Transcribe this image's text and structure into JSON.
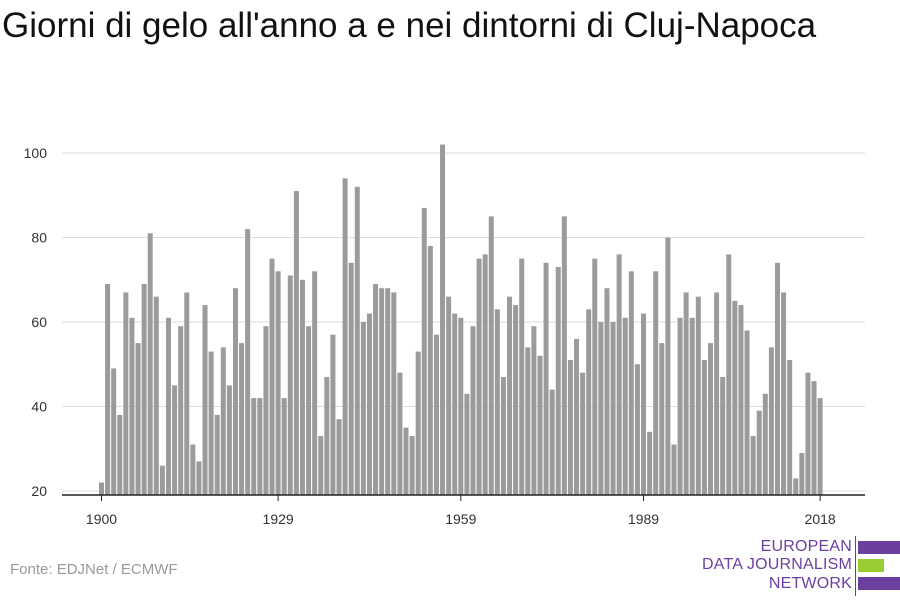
{
  "title": "Giorni di gelo all'anno a e nei dintorni di Cluj-Napoca",
  "source": "Fonte: EDJNet / ECMWF",
  "logo": {
    "line1": "EUROPEAN",
    "line2": "DATA JOURNALISM",
    "line3": "NETWORK"
  },
  "colors": {
    "bar": "#9b9b9b",
    "grid": "#dddddd",
    "axis": "#222222",
    "logo_purple": "#6b3fa0",
    "logo_green": "#9acd32"
  },
  "chart_data": {
    "type": "bar",
    "title": "Giorni di gelo all'anno a e nei dintorni di Cluj-Napoca",
    "xlabel": "",
    "ylabel": "",
    "ylim": [
      20,
      105
    ],
    "yticks": [
      20,
      40,
      60,
      80,
      100
    ],
    "xticks": [
      1900,
      1929,
      1959,
      1989,
      2018
    ],
    "grid": true,
    "x": [
      1900,
      1901,
      1902,
      1903,
      1904,
      1905,
      1906,
      1907,
      1908,
      1909,
      1910,
      1911,
      1912,
      1913,
      1914,
      1915,
      1916,
      1917,
      1918,
      1919,
      1920,
      1921,
      1922,
      1923,
      1924,
      1925,
      1926,
      1927,
      1928,
      1929,
      1930,
      1931,
      1932,
      1933,
      1934,
      1935,
      1936,
      1937,
      1938,
      1939,
      1940,
      1941,
      1942,
      1943,
      1944,
      1945,
      1946,
      1947,
      1948,
      1949,
      1950,
      1951,
      1952,
      1953,
      1954,
      1955,
      1956,
      1957,
      1958,
      1959,
      1960,
      1961,
      1962,
      1963,
      1964,
      1965,
      1966,
      1967,
      1968,
      1969,
      1970,
      1971,
      1972,
      1973,
      1974,
      1975,
      1976,
      1977,
      1978,
      1979,
      1980,
      1981,
      1982,
      1983,
      1984,
      1985,
      1986,
      1987,
      1988,
      1989,
      1990,
      1991,
      1992,
      1993,
      1994,
      1995,
      1996,
      1997,
      1998,
      1999,
      2000,
      2001,
      2002,
      2003,
      2004,
      2005,
      2006,
      2007,
      2008,
      2009,
      2010,
      2011,
      2012,
      2013,
      2014,
      2015,
      2016,
      2017,
      2018
    ],
    "values": [
      22,
      69,
      49,
      38,
      67,
      61,
      55,
      69,
      81,
      66,
      26,
      61,
      45,
      59,
      67,
      31,
      27,
      64,
      53,
      38,
      54,
      45,
      68,
      55,
      82,
      42,
      42,
      59,
      75,
      72,
      42,
      71,
      91,
      70,
      59,
      72,
      33,
      47,
      57,
      37,
      94,
      74,
      92,
      60,
      62,
      69,
      68,
      68,
      67,
      48,
      35,
      33,
      53,
      87,
      78,
      57,
      102,
      66,
      62,
      61,
      43,
      59,
      75,
      76,
      85,
      63,
      47,
      66,
      64,
      75,
      54,
      59,
      52,
      74,
      44,
      73,
      85,
      51,
      56,
      48,
      63,
      75,
      60,
      68,
      60,
      76,
      61,
      72,
      50,
      62,
      34,
      72,
      55,
      80,
      31,
      61,
      67,
      61,
      66,
      51,
      55,
      67,
      47,
      76,
      65,
      64,
      58,
      33,
      39,
      43,
      54,
      74,
      67,
      51,
      23,
      29,
      48,
      46,
      42
    ]
  }
}
